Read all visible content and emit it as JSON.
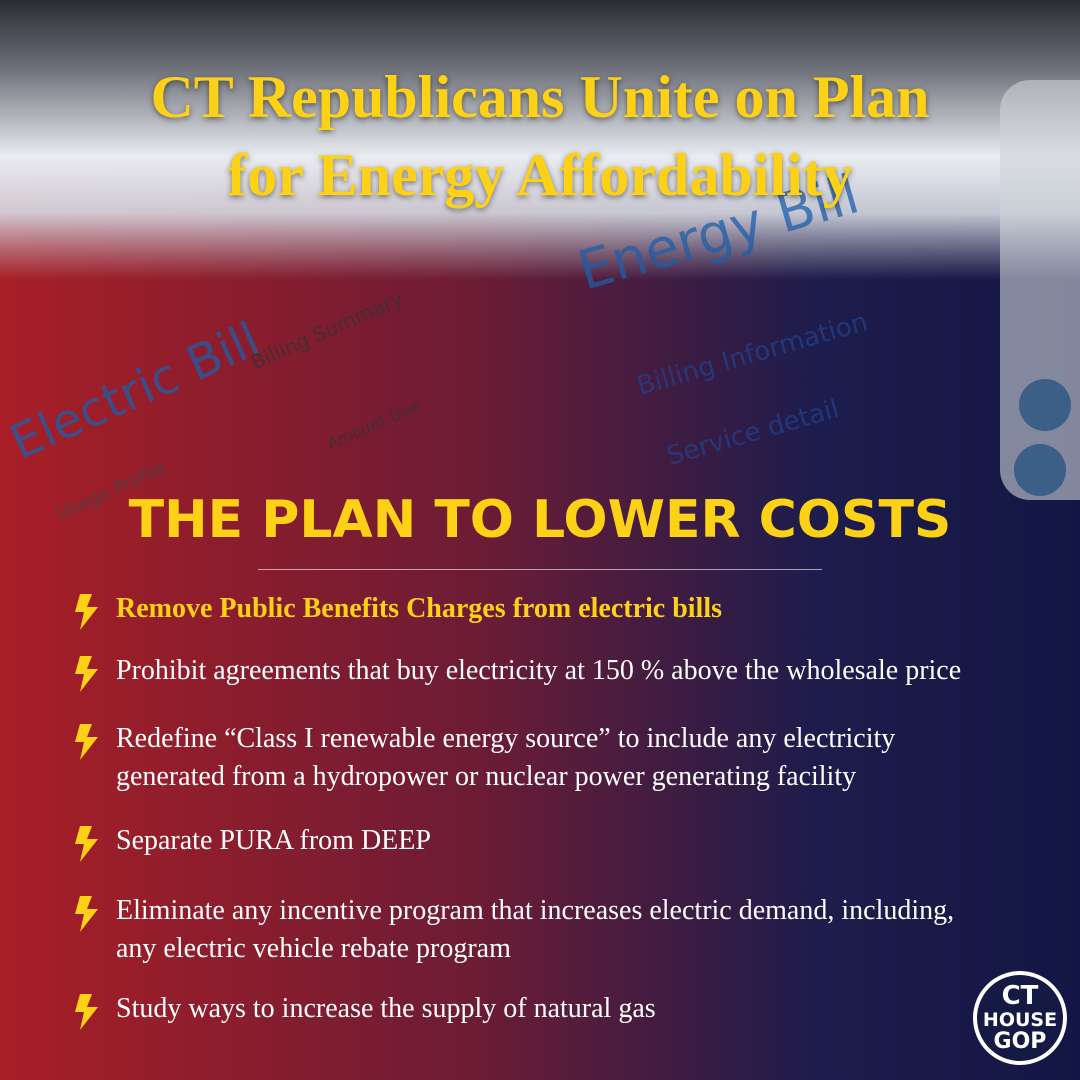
{
  "header": {
    "title_lines": [
      "CT Republicans Unite on Plan",
      "for Energy Affordability"
    ]
  },
  "background_texts": {
    "electric_bill": "Electric Bill",
    "billing_summary": "Billing Summary",
    "energy_bill": "Energy Bill",
    "billing_information": "Billing Information",
    "service_detail": "Service detail",
    "usage_profile": "Usage Profile",
    "amount_due": "Amount Due"
  },
  "plan": {
    "heading": "THE PLAN TO LOWER COSTS",
    "items": [
      "Remove Public Benefits Charges from electric bills",
      "Prohibit agreements that buy electricity at 150 % above the wholesale price",
      "Redefine “Class I renewable energy source” to include any electricity generated from a hydropower or nuclear power generating facility",
      "Separate PURA from DEEP",
      "Eliminate any incentive program that increases electric demand, including, any electric vehicle rebate program",
      "Study ways to increase the supply of natural gas"
    ]
  },
  "logo": {
    "lines": [
      "CT",
      "HOUSE",
      "GOP"
    ]
  }
}
